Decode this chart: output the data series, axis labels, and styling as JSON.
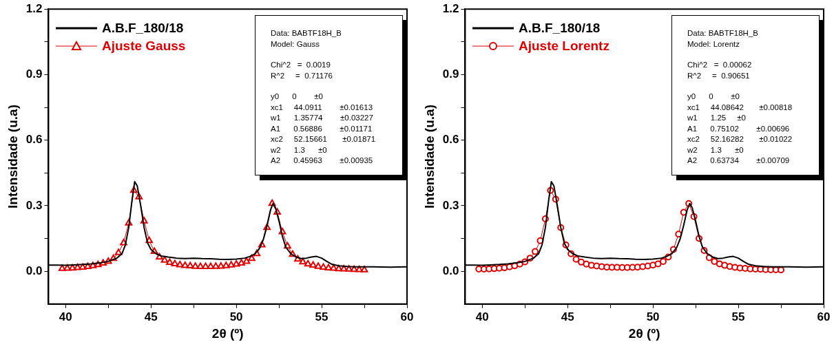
{
  "chart_data": [
    {
      "type": "line",
      "xlabel": "2θ (º)",
      "ylabel": "Intensidade (u.a)",
      "xlim": [
        39,
        60
      ],
      "ylim": [
        -0.15,
        1.2
      ],
      "xticks": [
        40,
        {
          "value": 42.5,
          "label": null
        },
        45,
        {
          "value": 47.5,
          "label": null
        },
        50,
        {
          "value": 52.5,
          "label": null
        },
        55,
        {
          "value": 57.5,
          "label": null
        },
        60
      ],
      "yticks": [
        {
          "value": 0,
          "label": "0.0"
        },
        {
          "value": 0.15,
          "label": null
        },
        0.3,
        {
          "value": 0.45,
          "label": null
        },
        0.6,
        {
          "value": 0.75,
          "label": null
        },
        0.9,
        {
          "value": 1.05,
          "label": null
        },
        1.2
      ],
      "legend": "top left",
      "grid": false,
      "annotations": [
        "Data: BABTF18H_B",
        "Model: Gauss",
        "Chi^2   =  0.0019",
        "R^2     =  0.71176",
        "y0      0        ±0",
        "xc1     44.0911        ±0.01613",
        "w1      1.35774        ±0.03227",
        "A1      0.56886        ±0.01171",
        "xc2     52.15661       ±0.01871",
        "w2      1.3      ±0",
        "A2      0.45963        ±0.00935"
      ],
      "series": [
        {
          "name": "A.B.F_180/18",
          "color": "#000000",
          "marker": "none",
          "x": [
            39,
            39.5,
            40,
            40.5,
            41,
            41.5,
            42,
            42.5,
            43,
            43.3,
            43.5,
            43.7,
            43.9,
            44.05,
            44.2,
            44.4,
            44.6,
            44.8,
            45,
            45.3,
            45.6,
            46,
            46.5,
            47,
            47.5,
            48,
            48.5,
            49,
            49.5,
            50,
            50.5,
            50.8,
            51.1,
            51.4,
            51.6,
            51.8,
            52,
            52.15,
            52.3,
            52.5,
            52.7,
            52.9,
            53.2,
            53.5,
            53.8,
            54.1,
            54.4,
            54.7,
            55,
            55.3,
            55.6,
            56,
            56.5,
            57,
            58,
            59,
            60
          ],
          "values": [
            0.028,
            0.028,
            0.027,
            0.029,
            0.031,
            0.034,
            0.038,
            0.045,
            0.06,
            0.08,
            0.12,
            0.2,
            0.33,
            0.41,
            0.39,
            0.3,
            0.2,
            0.13,
            0.1,
            0.08,
            0.07,
            0.065,
            0.06,
            0.058,
            0.06,
            0.058,
            0.057,
            0.055,
            0.054,
            0.056,
            0.06,
            0.068,
            0.08,
            0.11,
            0.15,
            0.21,
            0.28,
            0.31,
            0.29,
            0.23,
            0.16,
            0.11,
            0.08,
            0.065,
            0.058,
            0.06,
            0.065,
            0.068,
            0.06,
            0.045,
            0.032,
            0.025,
            0.022,
            0.02,
            0.02,
            0.019,
            0.02
          ]
        },
        {
          "name": "Ajuste Gauss",
          "color": "#e00000",
          "marker": "triangle",
          "x": [
            39.8,
            40.1,
            40.4,
            40.7,
            41.0,
            41.3,
            41.6,
            41.9,
            42.2,
            42.5,
            42.8,
            43.1,
            43.4,
            43.7,
            44.0,
            44.3,
            44.6,
            44.9,
            45.2,
            45.5,
            45.8,
            46.1,
            46.4,
            46.7,
            47.0,
            47.3,
            47.6,
            47.9,
            48.2,
            48.5,
            48.8,
            49.1,
            49.4,
            49.7,
            50.0,
            50.3,
            50.6,
            50.9,
            51.2,
            51.5,
            51.8,
            52.1,
            52.4,
            52.7,
            53.0,
            53.3,
            53.6,
            53.9,
            54.2,
            54.5,
            54.8,
            55.1,
            55.4,
            55.7,
            56.0,
            56.3,
            56.6,
            56.9,
            57.2,
            57.5
          ],
          "values": [
            0.012,
            0.013,
            0.014,
            0.016,
            0.018,
            0.021,
            0.025,
            0.03,
            0.037,
            0.045,
            0.058,
            0.085,
            0.13,
            0.22,
            0.37,
            0.34,
            0.23,
            0.14,
            0.09,
            0.064,
            0.05,
            0.04,
            0.034,
            0.029,
            0.026,
            0.024,
            0.022,
            0.021,
            0.021,
            0.021,
            0.022,
            0.023,
            0.025,
            0.028,
            0.032,
            0.037,
            0.045,
            0.058,
            0.08,
            0.12,
            0.2,
            0.31,
            0.27,
            0.18,
            0.115,
            0.077,
            0.055,
            0.042,
            0.033,
            0.027,
            0.022,
            0.018,
            0.015,
            0.013,
            0.011,
            0.01,
            0.009,
            0.008,
            0.007,
            0.006
          ]
        }
      ]
    },
    {
      "type": "line",
      "xlabel": "2θ (º)",
      "ylabel": "Intensidade (u.a)",
      "xlim": [
        39,
        60
      ],
      "ylim": [
        -0.15,
        1.2
      ],
      "xticks": [
        40,
        {
          "value": 42.5,
          "label": null
        },
        45,
        {
          "value": 47.5,
          "label": null
        },
        50,
        {
          "value": 52.5,
          "label": null
        },
        55,
        {
          "value": 57.5,
          "label": null
        },
        60
      ],
      "yticks": [
        {
          "value": 0,
          "label": "0.0"
        },
        {
          "value": 0.15,
          "label": null
        },
        0.3,
        {
          "value": 0.45,
          "label": null
        },
        0.6,
        {
          "value": 0.75,
          "label": null
        },
        0.9,
        {
          "value": 1.05,
          "label": null
        },
        1.2
      ],
      "legend": "top left",
      "grid": false,
      "annotations": [
        "Data: BABTF18H_B",
        "Model: Lorentz",
        "Chi^2   =  0.00062",
        "R^2     =  0.90651",
        "y0      0        ±0",
        "xc1     44.08642       ±0.00818",
        "w1      1.25     ±0",
        "A1      0.75102        ±0.00696",
        "xc2     52.16282       ±0.01022",
        "w2      1.3      ±0",
        "A2      0.63734        ±0.00709"
      ],
      "series": [
        {
          "name": "A.B.F_180/18",
          "color": "#000000",
          "marker": "none",
          "x": [
            39,
            39.5,
            40,
            40.5,
            41,
            41.5,
            42,
            42.5,
            43,
            43.3,
            43.5,
            43.7,
            43.9,
            44.05,
            44.2,
            44.4,
            44.6,
            44.8,
            45,
            45.3,
            45.6,
            46,
            46.5,
            47,
            47.5,
            48,
            48.5,
            49,
            49.5,
            50,
            50.5,
            50.8,
            51.1,
            51.4,
            51.6,
            51.8,
            52,
            52.15,
            52.3,
            52.5,
            52.7,
            52.9,
            53.2,
            53.5,
            53.8,
            54.1,
            54.4,
            54.7,
            55,
            55.3,
            55.6,
            56,
            56.5,
            57,
            58,
            59,
            60
          ],
          "values": [
            0.028,
            0.028,
            0.027,
            0.029,
            0.031,
            0.034,
            0.038,
            0.045,
            0.06,
            0.08,
            0.12,
            0.2,
            0.33,
            0.41,
            0.39,
            0.3,
            0.2,
            0.13,
            0.1,
            0.08,
            0.07,
            0.065,
            0.06,
            0.058,
            0.06,
            0.058,
            0.057,
            0.055,
            0.054,
            0.056,
            0.06,
            0.068,
            0.08,
            0.11,
            0.15,
            0.21,
            0.28,
            0.31,
            0.29,
            0.23,
            0.16,
            0.11,
            0.08,
            0.065,
            0.058,
            0.06,
            0.065,
            0.068,
            0.06,
            0.045,
            0.032,
            0.025,
            0.022,
            0.02,
            0.02,
            0.019,
            0.02
          ]
        },
        {
          "name": "Ajuste Lorentz",
          "color": "#e00000",
          "marker": "circle",
          "x": [
            39.8,
            40.1,
            40.4,
            40.7,
            41.0,
            41.3,
            41.6,
            41.9,
            42.2,
            42.5,
            42.8,
            43.1,
            43.4,
            43.7,
            44.0,
            44.3,
            44.6,
            44.9,
            45.2,
            45.5,
            45.8,
            46.1,
            46.4,
            46.7,
            47.0,
            47.3,
            47.6,
            47.9,
            48.2,
            48.5,
            48.8,
            49.1,
            49.4,
            49.7,
            50.0,
            50.3,
            50.6,
            50.9,
            51.2,
            51.5,
            51.8,
            52.1,
            52.4,
            52.7,
            53.0,
            53.3,
            53.6,
            53.9,
            54.2,
            54.5,
            54.8,
            55.1,
            55.4,
            55.7,
            56.0,
            56.3,
            56.6,
            56.9,
            57.2,
            57.5
          ],
          "values": [
            0.01,
            0.01,
            0.011,
            0.012,
            0.014,
            0.016,
            0.02,
            0.025,
            0.033,
            0.043,
            0.06,
            0.09,
            0.14,
            0.24,
            0.37,
            0.33,
            0.2,
            0.12,
            0.08,
            0.055,
            0.042,
            0.033,
            0.027,
            0.024,
            0.021,
            0.019,
            0.018,
            0.018,
            0.017,
            0.017,
            0.018,
            0.019,
            0.021,
            0.024,
            0.028,
            0.034,
            0.045,
            0.065,
            0.1,
            0.17,
            0.27,
            0.31,
            0.25,
            0.15,
            0.095,
            0.062,
            0.045,
            0.034,
            0.027,
            0.022,
            0.018,
            0.015,
            0.013,
            0.011,
            0.01,
            0.009,
            0.008,
            0.007,
            0.007,
            0.006
          ]
        }
      ]
    }
  ]
}
